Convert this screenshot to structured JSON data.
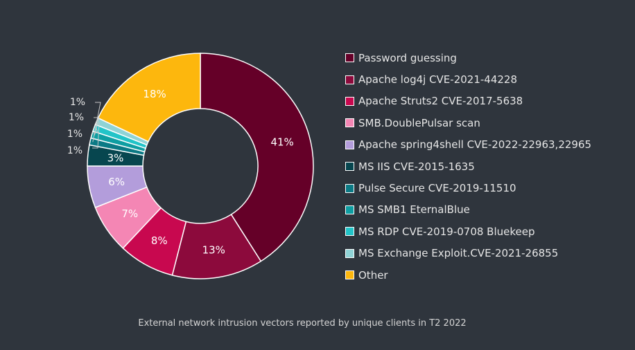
{
  "chart_data": {
    "type": "pie",
    "donut": true,
    "title": "",
    "caption": "External network intrusion vectors reported by unique clients in T2 2022",
    "legend_position": "right",
    "categories": [
      "Password guessing",
      "Apache log4j CVE-2021-44228",
      "Apache Struts2 CVE-2017-5638",
      "SMB.DoublePulsar scan",
      "Apache spring4shell CVE-2022-22963,22965",
      "MS IIS CVE-2015-1635",
      "Pulse Secure CVE-2019-11510",
      "MS SMB1 EternalBlue",
      "MS RDP CVE-2019-0708 Bluekeep",
      "MS Exchange Exploit.CVE-2021-26855",
      "Other"
    ],
    "values": [
      41,
      13,
      8,
      7,
      6,
      3,
      1,
      1,
      1,
      1,
      18
    ],
    "labels": [
      "41%",
      "13%",
      "8%",
      "7%",
      "6%",
      "3%",
      "1%",
      "1%",
      "1%",
      "1%",
      "18%"
    ],
    "colors": [
      "#650028",
      "#8c0a3c",
      "#c8084f",
      "#f486b4",
      "#b39ddb",
      "#07464f",
      "#0b7a85",
      "#0e9ea2",
      "#22c4c8",
      "#8fd3d6",
      "#fdb70d"
    ]
  }
}
